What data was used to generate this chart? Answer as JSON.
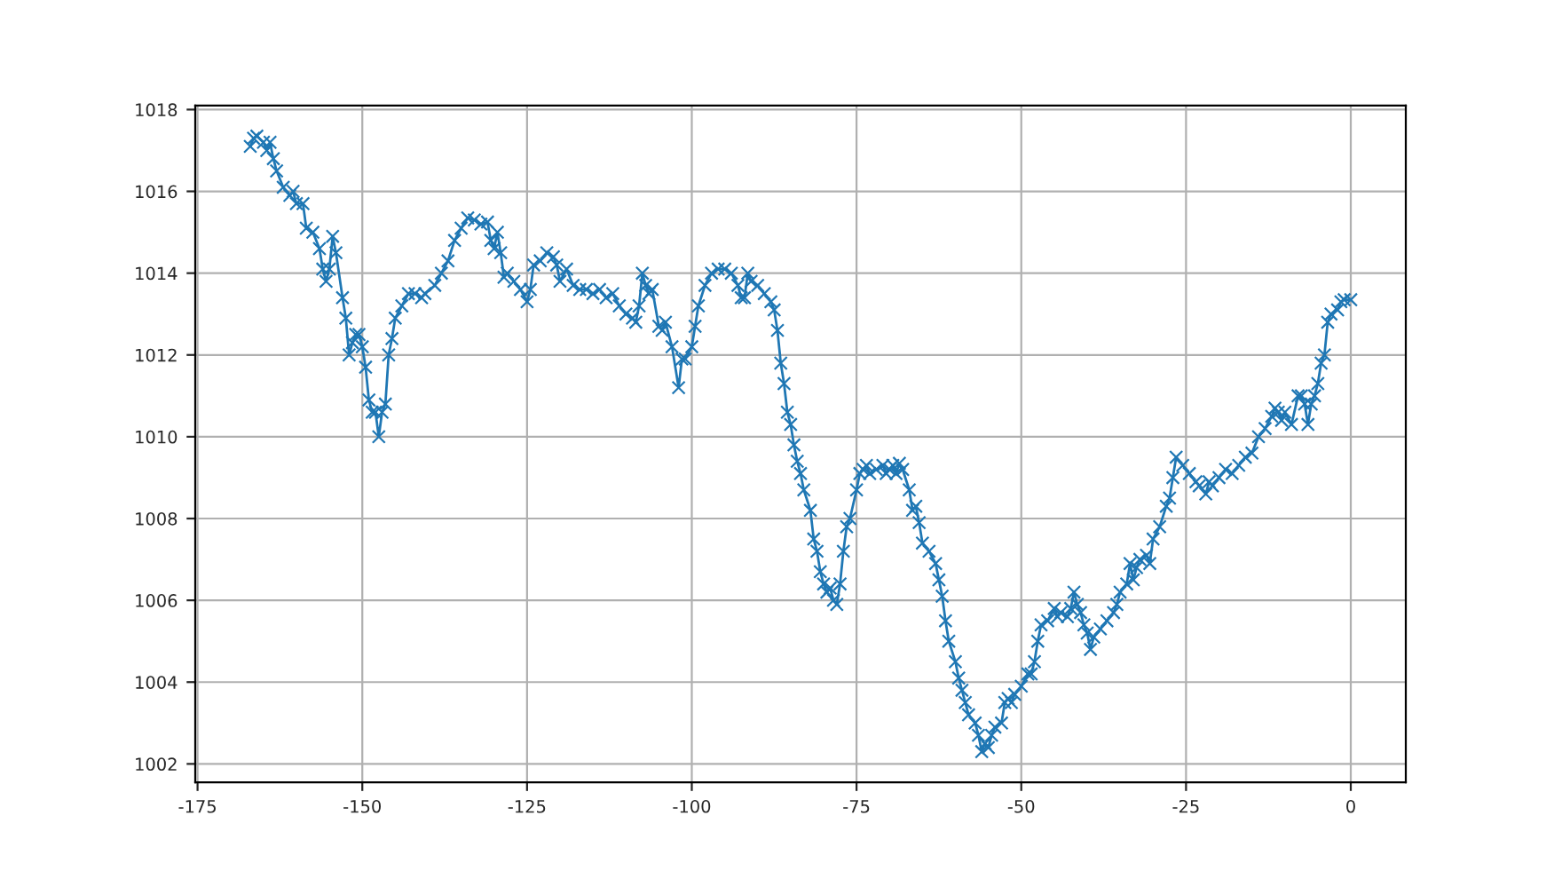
{
  "chart_data": {
    "type": "line",
    "marker": "cross",
    "grid": true,
    "xlim": [
      -175.35,
      8.35
    ],
    "ylim": [
      1001.55,
      1018.1
    ],
    "xticks": [
      -175,
      -150,
      -125,
      -100,
      -75,
      -50,
      -25,
      0
    ],
    "yticks": [
      1002,
      1004,
      1006,
      1008,
      1010,
      1012,
      1014,
      1016,
      1018
    ],
    "series": [
      {
        "color": "#1f77b4",
        "x": [
          -167,
          -166.5,
          -166,
          -165,
          -164.5,
          -164,
          -163.5,
          -163,
          -162,
          -161,
          -160.5,
          -160,
          -159,
          -158.5,
          -157.5,
          -156.5,
          -156,
          -155.5,
          -155,
          -154.5,
          -154,
          -153,
          -152.5,
          -152,
          -151.5,
          -151,
          -150.5,
          -150,
          -149.5,
          -149,
          -148.5,
          -148,
          -147.5,
          -147,
          -146.5,
          -146,
          -145.5,
          -145,
          -144,
          -143,
          -142,
          -141,
          -140.5,
          -139,
          -138,
          -137,
          -136,
          -135,
          -134,
          -133,
          -132,
          -131,
          -130.5,
          -130,
          -129.5,
          -129,
          -128.5,
          -128,
          -127,
          -126,
          -125,
          -124.5,
          -124,
          -123,
          -122,
          -121,
          -120.5,
          -120,
          -119,
          -118,
          -117,
          -116,
          -115,
          -114,
          -113,
          -112,
          -111,
          -110,
          -109,
          -108.5,
          -108,
          -107.5,
          -107,
          -106.5,
          -106,
          -105,
          -104.5,
          -104,
          -103,
          -102,
          -101.5,
          -101,
          -100,
          -99.5,
          -99,
          -98,
          -97,
          -96,
          -95,
          -94,
          -93,
          -92.5,
          -92,
          -91.5,
          -91,
          -90,
          -89,
          -88,
          -87.5,
          -87,
          -86.5,
          -86,
          -85.5,
          -85,
          -84.5,
          -84,
          -83.5,
          -83,
          -82,
          -81.5,
          -81,
          -80.5,
          -80,
          -79.5,
          -79,
          -78.5,
          -78,
          -77.5,
          -77,
          -76.5,
          -76,
          -75,
          -74.5,
          -74,
          -73.5,
          -73,
          -72,
          -71,
          -70.5,
          -70,
          -69.5,
          -69,
          -68.5,
          -68,
          -67,
          -66.5,
          -66,
          -65.5,
          -65,
          -64,
          -63,
          -62.5,
          -62,
          -61.5,
          -61,
          -60,
          -59.5,
          -59,
          -58.5,
          -58,
          -57,
          -56.5,
          -56,
          -55.5,
          -55,
          -54.5,
          -54,
          -53,
          -52.5,
          -52,
          -51.5,
          -51,
          -50,
          -49,
          -48.5,
          -48,
          -47.5,
          -47,
          -46,
          -45,
          -44.5,
          -44,
          -43,
          -42.5,
          -42,
          -41.5,
          -41,
          -40.5,
          -40,
          -39.5,
          -39,
          -38,
          -37,
          -36,
          -35.5,
          -35,
          -34,
          -33.5,
          -33,
          -32.5,
          -32,
          -31,
          -30.5,
          -30,
          -29,
          -28,
          -27.5,
          -27,
          -26.5,
          -25.5,
          -24.5,
          -23.5,
          -23,
          -22,
          -21.5,
          -21,
          -20,
          -19,
          -18,
          -17,
          -16,
          -15,
          -14,
          -13,
          -12,
          -11.5,
          -11,
          -10.5,
          -10,
          -9,
          -8,
          -7.5,
          -7,
          -6.5,
          -6,
          -5.5,
          -5,
          -4.5,
          -4,
          -3.5,
          -3,
          -2,
          -1.5,
          -1,
          0
        ],
        "values": [
          1017.1,
          1017.3,
          1017.35,
          1017.2,
          1017.0,
          1017.2,
          1016.8,
          1016.5,
          1016.1,
          1015.9,
          1016.0,
          1015.7,
          1015.7,
          1015.1,
          1015.0,
          1014.6,
          1014.1,
          1013.8,
          1014.1,
          1014.9,
          1014.5,
          1013.4,
          1012.9,
          1012.0,
          1012.3,
          1012.5,
          1012.5,
          1012.2,
          1011.7,
          1010.9,
          1010.6,
          1010.6,
          1010.0,
          1010.6,
          1010.8,
          1012.0,
          1012.4,
          1012.9,
          1013.2,
          1013.5,
          1013.5,
          1013.4,
          1013.5,
          1013.7,
          1014.0,
          1014.3,
          1014.8,
          1015.1,
          1015.35,
          1015.3,
          1015.2,
          1015.25,
          1014.8,
          1014.6,
          1015.0,
          1014.5,
          1013.9,
          1014.0,
          1013.8,
          1013.6,
          1013.3,
          1013.6,
          1014.2,
          1014.3,
          1014.5,
          1014.4,
          1014.2,
          1013.8,
          1014.1,
          1013.7,
          1013.6,
          1013.6,
          1013.5,
          1013.6,
          1013.4,
          1013.5,
          1013.2,
          1013.0,
          1012.9,
          1012.8,
          1013.2,
          1014.0,
          1013.7,
          1013.5,
          1013.6,
          1012.7,
          1012.6,
          1012.8,
          1012.2,
          1011.2,
          1011.9,
          1011.9,
          1012.2,
          1012.7,
          1013.2,
          1013.7,
          1014.0,
          1014.1,
          1014.1,
          1014.0,
          1013.7,
          1013.4,
          1013.4,
          1014.0,
          1013.8,
          1013.7,
          1013.5,
          1013.3,
          1013.1,
          1012.6,
          1011.8,
          1011.3,
          1010.6,
          1010.3,
          1009.8,
          1009.4,
          1009.1,
          1008.7,
          1008.2,
          1007.5,
          1007.2,
          1006.7,
          1006.4,
          1006.2,
          1006.3,
          1006.0,
          1005.9,
          1006.4,
          1007.2,
          1007.8,
          1008.0,
          1008.7,
          1009.1,
          1009.2,
          1009.3,
          1009.1,
          1009.2,
          1009.3,
          1009.1,
          1009.2,
          1009.3,
          1009.1,
          1009.35,
          1009.2,
          1008.7,
          1008.2,
          1008.3,
          1007.9,
          1007.4,
          1007.2,
          1006.9,
          1006.5,
          1006.1,
          1005.5,
          1005.0,
          1004.5,
          1004.1,
          1003.8,
          1003.5,
          1003.2,
          1003.0,
          1002.7,
          1002.3,
          1002.5,
          1002.4,
          1002.7,
          1002.9,
          1003.0,
          1003.5,
          1003.6,
          1003.5,
          1003.7,
          1003.9,
          1004.2,
          1004.2,
          1004.5,
          1005.0,
          1005.4,
          1005.5,
          1005.8,
          1005.6,
          1005.7,
          1005.6,
          1005.8,
          1006.2,
          1005.9,
          1005.7,
          1005.4,
          1005.2,
          1004.8,
          1005.1,
          1005.3,
          1005.5,
          1005.7,
          1005.9,
          1006.2,
          1006.4,
          1006.9,
          1006.5,
          1006.8,
          1007.0,
          1007.1,
          1006.9,
          1007.5,
          1007.8,
          1008.3,
          1008.5,
          1009.0,
          1009.5,
          1009.3,
          1009.1,
          1008.9,
          1008.8,
          1008.6,
          1008.9,
          1008.8,
          1009.0,
          1009.2,
          1009.1,
          1009.3,
          1009.5,
          1009.6,
          1010.0,
          1010.2,
          1010.5,
          1010.7,
          1010.6,
          1010.4,
          1010.6,
          1010.3,
          1011.0,
          1011.0,
          1010.8,
          1010.3,
          1010.8,
          1011.0,
          1011.3,
          1011.8,
          1012.0,
          1012.8,
          1013.0,
          1013.1,
          1013.3,
          1013.35,
          1013.35
        ]
      }
    ]
  }
}
